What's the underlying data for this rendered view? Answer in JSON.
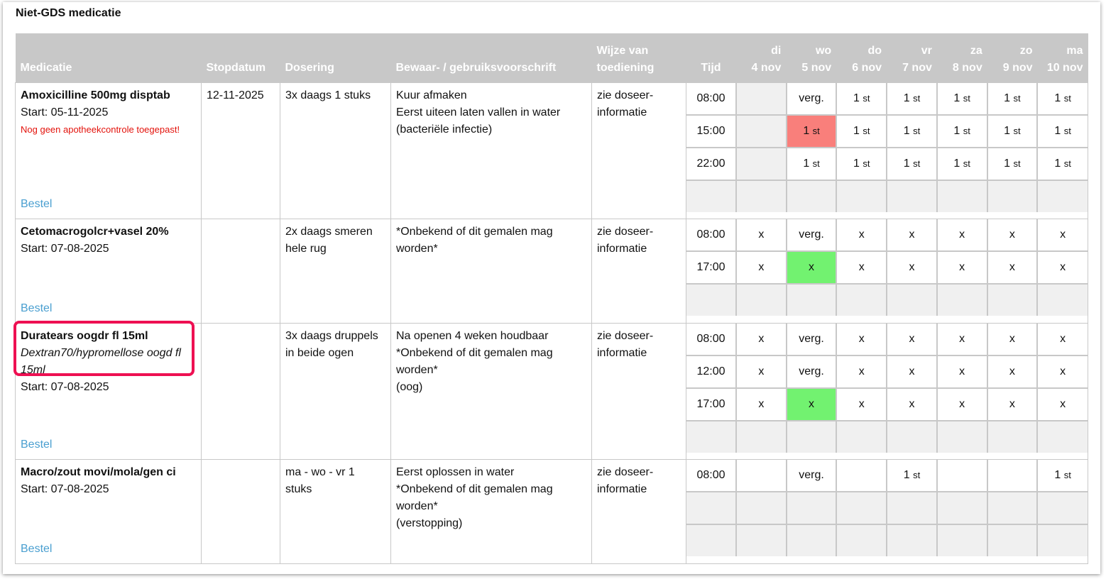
{
  "section_title": "Niet-GDS medicatie",
  "headers": {
    "medicatie": "Medicatie",
    "stopdatum": "Stopdatum",
    "dosering": "Dosering",
    "voorschrift": "Bewaar- / gebruiksvoorschrift",
    "wijze": "Wijze van\ntoediening",
    "tijd": "Tijd",
    "days": [
      "di\n4 nov",
      "wo\n5 nov",
      "do\n6 nov",
      "vr\n7 nov",
      "za\n8 nov",
      "zo\n9 nov",
      "ma\n10 nov"
    ]
  },
  "colors": {
    "header_bg": "#c8c8c8",
    "late_cell": "#f97f7b",
    "given_cell": "#72f270",
    "link": "#4a9fd0",
    "warning": "#e3120b",
    "highlight": "#ee1052"
  },
  "medications": [
    {
      "name": "Amoxicilline 500mg disptab",
      "generic": "",
      "start": "Start: 05-11-2025",
      "warning": "Nog geen apotheekcontrole toegepast!",
      "order_link": "Bestel",
      "stopdatum": "12-11-2025",
      "dosering": "3x daags 1 stuks",
      "voorschrift": "Kuur afmaken\nEerst uiteen laten vallen in water\n(bacteriële infectie)",
      "wijze": "zie doseer-\ninformatie",
      "schedule": [
        {
          "time": "08:00",
          "cells": [
            {
              "v": "",
              "s": "empty"
            },
            {
              "v": "verg.",
              "s": ""
            },
            {
              "v": "1",
              "u": "st",
              "s": ""
            },
            {
              "v": "1",
              "u": "st",
              "s": ""
            },
            {
              "v": "1",
              "u": "st",
              "s": ""
            },
            {
              "v": "1",
              "u": "st",
              "s": ""
            },
            {
              "v": "1",
              "u": "st",
              "s": ""
            }
          ]
        },
        {
          "time": "15:00",
          "cells": [
            {
              "v": "",
              "s": "empty"
            },
            {
              "v": "1",
              "u": "st",
              "s": "red"
            },
            {
              "v": "1",
              "u": "st",
              "s": ""
            },
            {
              "v": "1",
              "u": "st",
              "s": ""
            },
            {
              "v": "1",
              "u": "st",
              "s": ""
            },
            {
              "v": "1",
              "u": "st",
              "s": ""
            },
            {
              "v": "1",
              "u": "st",
              "s": ""
            }
          ]
        },
        {
          "time": "22:00",
          "cells": [
            {
              "v": "",
              "s": "empty"
            },
            {
              "v": "1",
              "u": "st",
              "s": ""
            },
            {
              "v": "1",
              "u": "st",
              "s": ""
            },
            {
              "v": "1",
              "u": "st",
              "s": ""
            },
            {
              "v": "1",
              "u": "st",
              "s": ""
            },
            {
              "v": "1",
              "u": "st",
              "s": ""
            },
            {
              "v": "1",
              "u": "st",
              "s": ""
            }
          ]
        }
      ],
      "filler_rows": 1
    },
    {
      "name": "Cetomacrogolcr+vasel 20%",
      "generic": "",
      "start": "Start: 07-08-2025",
      "warning": "",
      "order_link": "Bestel",
      "stopdatum": "",
      "dosering": "2x daags smeren\nhele rug",
      "voorschrift": "*Onbekend of dit gemalen mag\nworden*",
      "wijze": "zie doseer-\ninformatie",
      "schedule": [
        {
          "time": "08:00",
          "cells": [
            {
              "v": "x",
              "s": ""
            },
            {
              "v": "verg.",
              "s": ""
            },
            {
              "v": "x",
              "s": ""
            },
            {
              "v": "x",
              "s": ""
            },
            {
              "v": "x",
              "s": ""
            },
            {
              "v": "x",
              "s": ""
            },
            {
              "v": "x",
              "s": ""
            }
          ]
        },
        {
          "time": "17:00",
          "cells": [
            {
              "v": "x",
              "s": ""
            },
            {
              "v": "x",
              "s": "green"
            },
            {
              "v": "x",
              "s": ""
            },
            {
              "v": "x",
              "s": ""
            },
            {
              "v": "x",
              "s": ""
            },
            {
              "v": "x",
              "s": ""
            },
            {
              "v": "x",
              "s": ""
            }
          ]
        }
      ],
      "filler_rows": 1
    },
    {
      "name": "Duratears oogdr fl 15ml",
      "generic": "Dextran70/hypromellose oogd fl 15ml",
      "start": "Start: 07-08-2025",
      "warning": "",
      "order_link": "Bestel",
      "stopdatum": "",
      "dosering": "3x daags druppels\nin beide ogen",
      "voorschrift": "Na openen 4 weken houdbaar\n*Onbekend of dit gemalen mag\nworden*\n(oog)",
      "wijze": "zie doseer-\ninformatie",
      "schedule": [
        {
          "time": "08:00",
          "cells": [
            {
              "v": "x",
              "s": ""
            },
            {
              "v": "verg.",
              "s": ""
            },
            {
              "v": "x",
              "s": ""
            },
            {
              "v": "x",
              "s": ""
            },
            {
              "v": "x",
              "s": ""
            },
            {
              "v": "x",
              "s": ""
            },
            {
              "v": "x",
              "s": ""
            }
          ]
        },
        {
          "time": "12:00",
          "cells": [
            {
              "v": "x",
              "s": ""
            },
            {
              "v": "verg.",
              "s": ""
            },
            {
              "v": "x",
              "s": ""
            },
            {
              "v": "x",
              "s": ""
            },
            {
              "v": "x",
              "s": ""
            },
            {
              "v": "x",
              "s": ""
            },
            {
              "v": "x",
              "s": ""
            }
          ]
        },
        {
          "time": "17:00",
          "cells": [
            {
              "v": "x",
              "s": ""
            },
            {
              "v": "x",
              "s": "green"
            },
            {
              "v": "x",
              "s": ""
            },
            {
              "v": "x",
              "s": ""
            },
            {
              "v": "x",
              "s": ""
            },
            {
              "v": "x",
              "s": ""
            },
            {
              "v": "x",
              "s": ""
            }
          ]
        }
      ],
      "filler_rows": 1
    },
    {
      "name": "Macro/zout movi/mola/gen ci",
      "generic": "",
      "start": "Start: 07-08-2025",
      "warning": "",
      "order_link": "Bestel",
      "stopdatum": "",
      "dosering": "ma - wo - vr 1\nstuks",
      "voorschrift": "Eerst oplossen in water\n*Onbekend of dit gemalen mag\nworden*\n(verstopping)",
      "wijze": "zie doseer-\ninformatie",
      "schedule": [
        {
          "time": "08:00",
          "cells": [
            {
              "v": "",
              "s": ""
            },
            {
              "v": "verg.",
              "s": ""
            },
            {
              "v": "",
              "s": ""
            },
            {
              "v": "1",
              "u": "st",
              "s": ""
            },
            {
              "v": "",
              "s": ""
            },
            {
              "v": "",
              "s": ""
            },
            {
              "v": "1",
              "u": "st",
              "s": ""
            }
          ]
        }
      ],
      "filler_rows": 2
    }
  ]
}
